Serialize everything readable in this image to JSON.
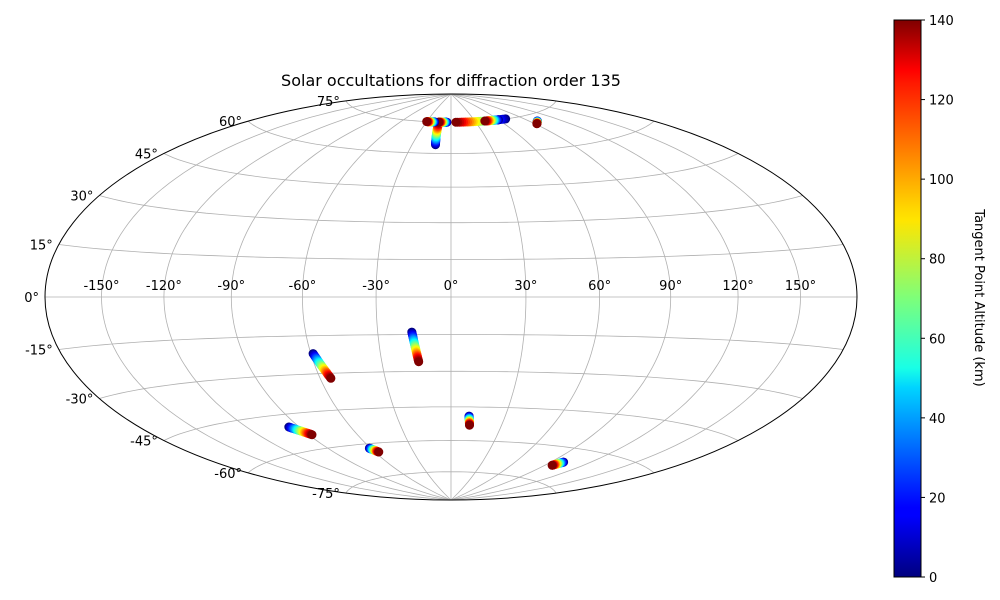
{
  "chart_data": {
    "type": "scatter",
    "projection": "hammer-aitoff",
    "title": "Solar occultations for diffraction order 135",
    "xlabel": "",
    "ylabel": "",
    "grid": true,
    "lon_ticks": [
      -150,
      -120,
      -90,
      -60,
      -30,
      0,
      30,
      60,
      90,
      120,
      150
    ],
    "lon_tick_labels": [
      "-150°",
      "-120°",
      "-90°",
      "-60°",
      "-30°",
      "0°",
      "30°",
      "60°",
      "90°",
      "120°",
      "150°"
    ],
    "lat_ticks": [
      -75,
      -60,
      -45,
      -30,
      -15,
      0,
      15,
      30,
      45,
      60,
      75
    ],
    "lat_tick_labels": [
      "-75°",
      "-60°",
      "-45°",
      "-30°",
      "-15°",
      "0°",
      "15°",
      "30°",
      "45°",
      "60°",
      "75°"
    ],
    "colorbar": {
      "label": "Tangent Point Altitude (km)",
      "range": [
        0,
        140
      ],
      "ticks": [
        0,
        20,
        40,
        60,
        80,
        100,
        120,
        140
      ],
      "tick_labels": [
        "0",
        "20",
        "40",
        "60",
        "80",
        "100",
        "120",
        "140"
      ],
      "colormap": "jet"
    },
    "series": [
      {
        "lon_start": -59,
        "lat_start": -22,
        "lon_end": -55,
        "lat_end": -32
      },
      {
        "lon_start": -16,
        "lat_start": -14,
        "lon_end": -14,
        "lat_end": -26
      },
      {
        "lon_start": -96,
        "lat_start": -50,
        "lon_end": -88,
        "lat_end": -54
      },
      {
        "lon_start": -61,
        "lat_start": -62,
        "lon_end": -57,
        "lat_end": -64
      },
      {
        "lon_start": 10,
        "lat_start": -49,
        "lon_end": 11,
        "lat_end": -53
      },
      {
        "lon_start": 100,
        "lat_start": -66,
        "lon_end": 96,
        "lat_end": -68
      },
      {
        "lon_start": -12,
        "lat_start": 64,
        "lon_end": -15,
        "lat_end": 75
      },
      {
        "lon_start": -5,
        "lat_start": 75,
        "lon_end": -15,
        "lat_end": 75
      },
      {
        "lon_start": -20,
        "lat_start": 75,
        "lon_end": -30,
        "lat_end": 75
      },
      {
        "lon_start": 70,
        "lat_start": 75,
        "lon_end": 6,
        "lat_end": 75
      },
      {
        "lon_start": 60,
        "lat_start": 75,
        "lon_end": 42,
        "lat_end": 75
      },
      {
        "lon_start": 98,
        "lat_start": 72,
        "lon_end": 92,
        "lat_end": 71
      }
    ]
  }
}
